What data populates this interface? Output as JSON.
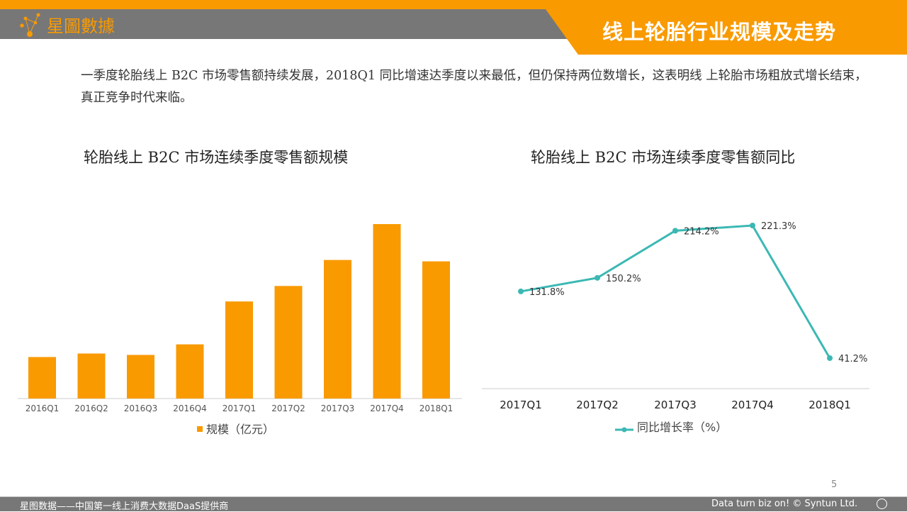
{
  "header": {
    "logo_text": "星圖數據",
    "title": "线上轮胎行业规模及走势"
  },
  "intro": "一季度轮胎线上 B2C 市场零售额持续发展，2018Q1 同比增速达季度以来最低，但仍保持两位数增长，这表明线 上轮胎市场粗放式增长结束，真正竞争时代来临。",
  "colors": {
    "accent": "#f99a00",
    "line": "#3bb8b4",
    "bar": "#f99a00"
  },
  "chart_data": [
    {
      "type": "bar",
      "title": "轮胎线上 B2C 市场连续季度零售额规模",
      "categories": [
        "2016Q1",
        "2016Q2",
        "2016Q3",
        "2016Q4",
        "2017Q1",
        "2017Q2",
        "2017Q3",
        "2017Q4",
        "2018Q1"
      ],
      "values": [
        59,
        64,
        62,
        77,
        138,
        160,
        197,
        248,
        195
      ],
      "legend": "规模（亿元）",
      "legend_position": "bottom",
      "ylim": [
        0,
        250
      ]
    },
    {
      "type": "line",
      "title": "轮胎线上 B2C 市场连续季度零售额同比",
      "categories": [
        "2017Q1",
        "2017Q2",
        "2017Q3",
        "2017Q4",
        "2018Q1"
      ],
      "values": [
        131.8,
        150.2,
        214.2,
        221.3,
        41.2
      ],
      "labels": [
        "131.8%",
        "150.2%",
        "214.2%",
        "221.3%",
        "41.2%"
      ],
      "legend": "同比增长率（%）",
      "legend_position": "bottom"
    }
  ],
  "footer": {
    "left": "星图数据——中国第一线上消费大数据DaaS提供商",
    "right": "Data turn biz on! © Syntun Ltd.",
    "page": "5"
  }
}
